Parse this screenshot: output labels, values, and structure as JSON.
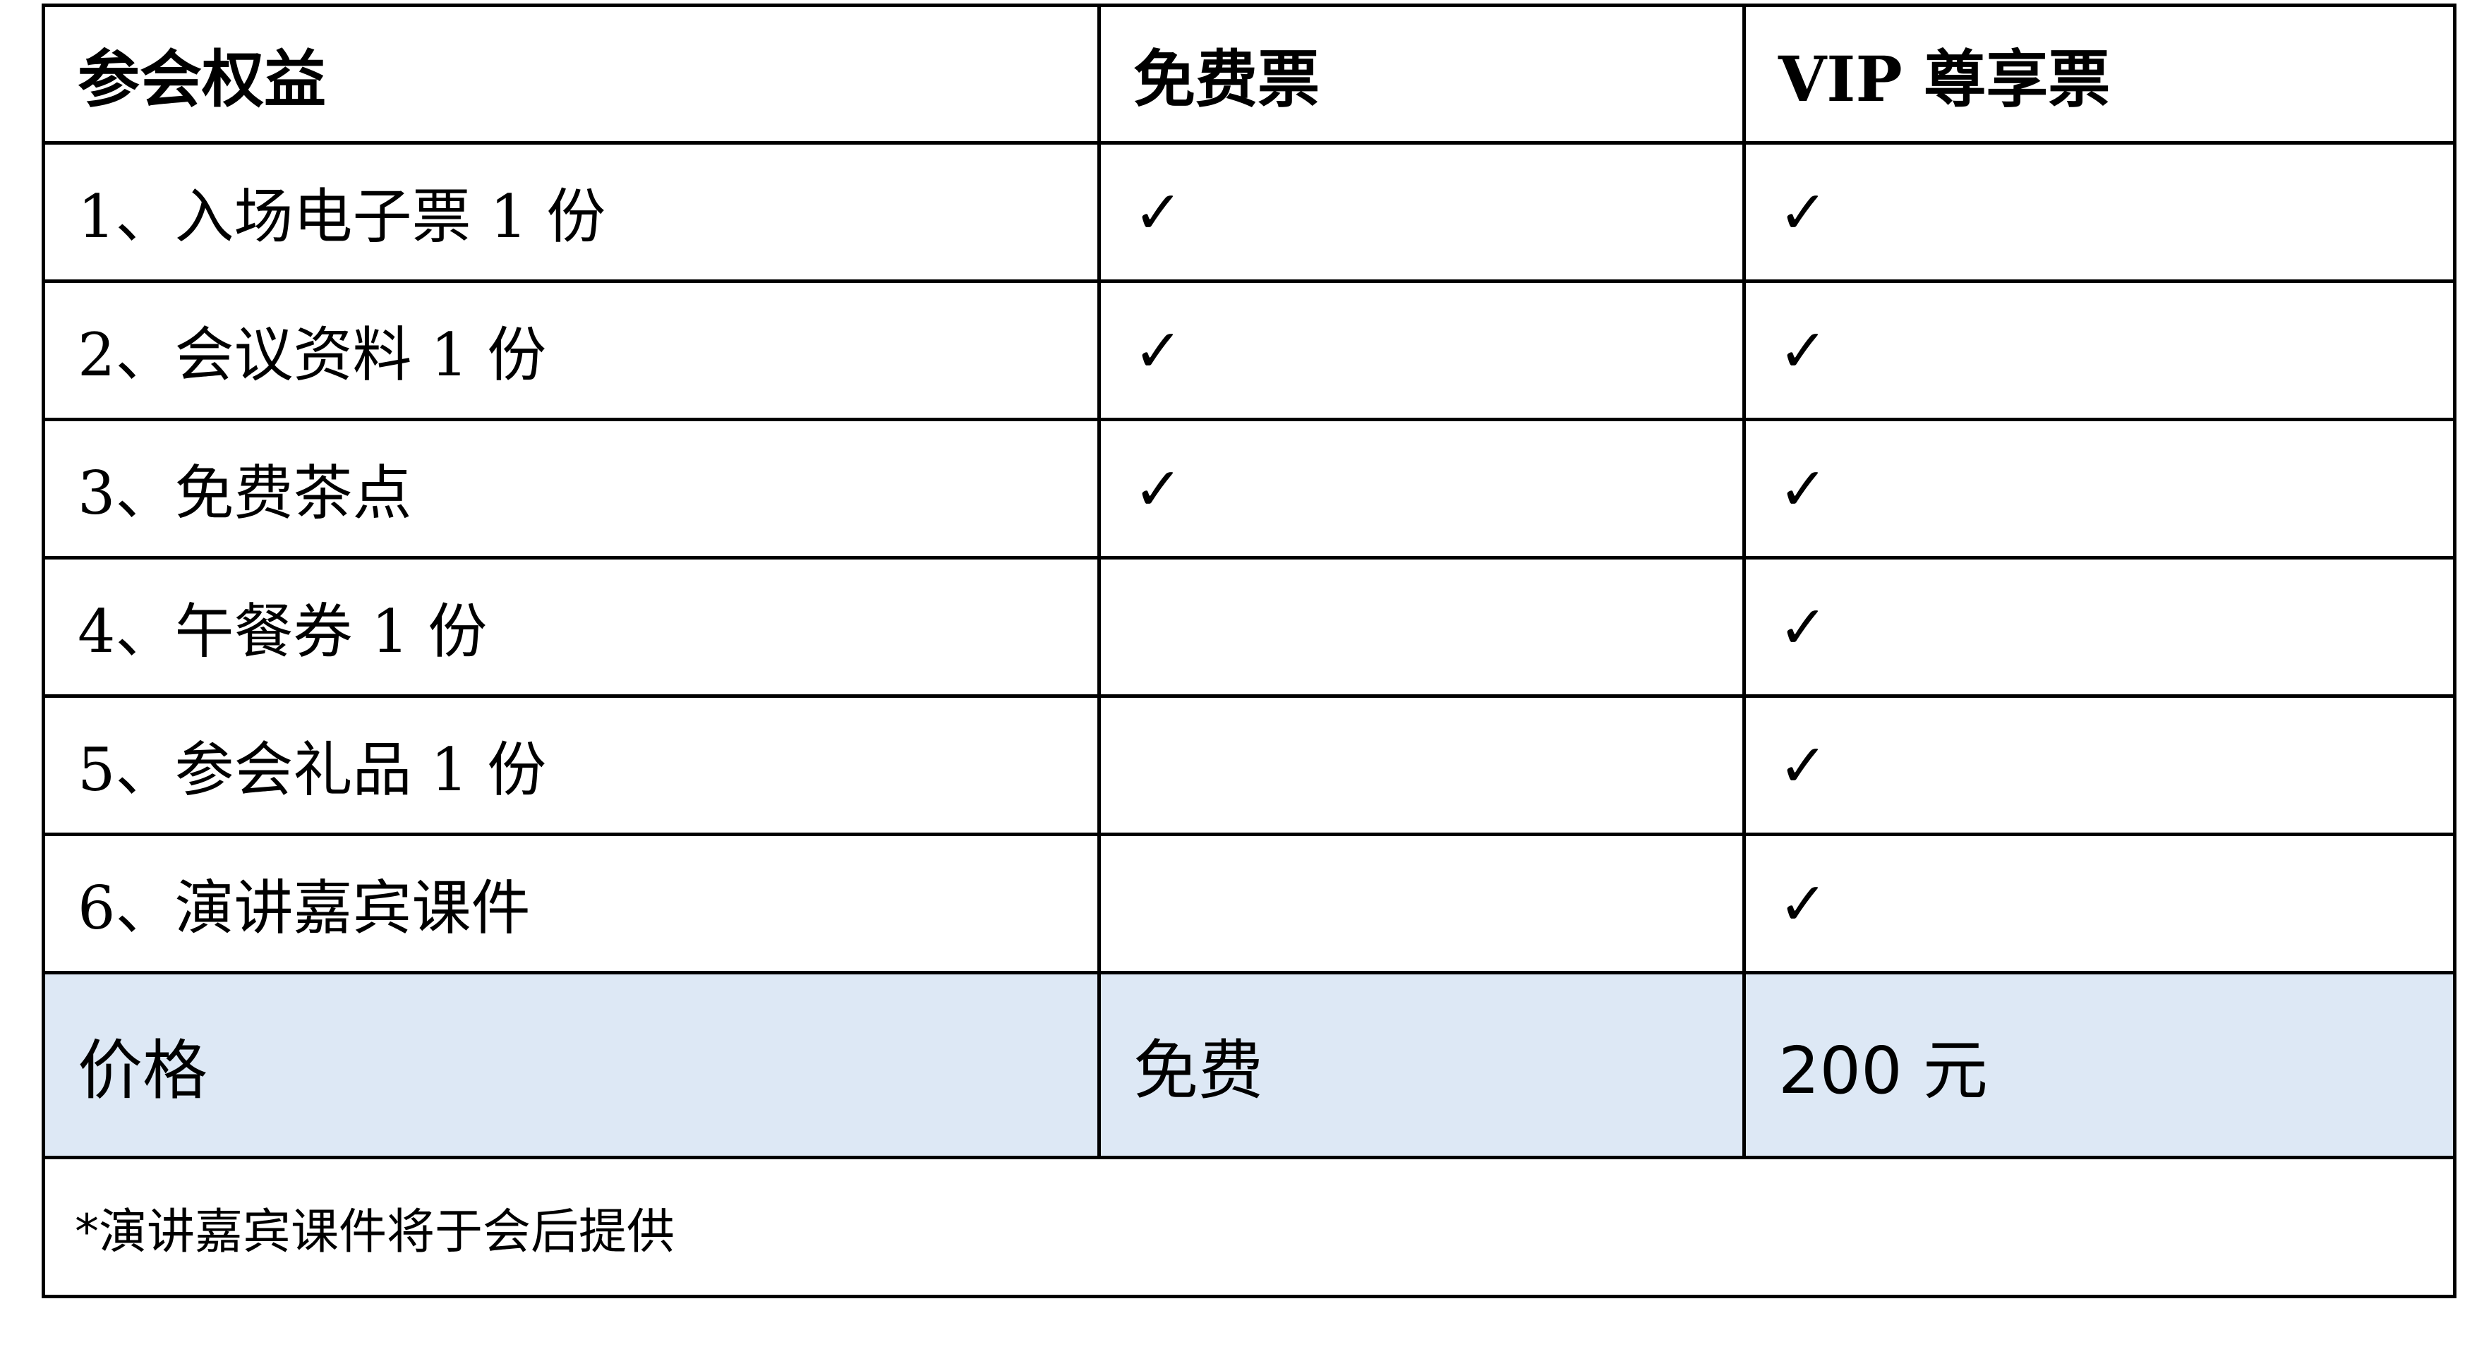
{
  "headers": [
    "参会权益",
    "免费票",
    "VIP 尊享票"
  ],
  "rows": [
    {
      "benefit": "1、入场电子票 1 份",
      "free": true,
      "vip": true
    },
    {
      "benefit": "2、会议资料 1 份",
      "free": true,
      "vip": true
    },
    {
      "benefit": "3、免费茶点",
      "free": true,
      "vip": true
    },
    {
      "benefit": "4、午餐券 1 份",
      "free": false,
      "vip": true
    },
    {
      "benefit": "5、参会礼品 1 份",
      "free": false,
      "vip": true
    },
    {
      "benefit": "6、演讲嘉宾课件",
      "free": false,
      "vip": true
    }
  ],
  "check_icon": "checkmark-icon",
  "check_glyph": "✓",
  "price": {
    "label": "价格",
    "free": "免费",
    "vip": "200 元"
  },
  "price_row_color": "#dde8f5",
  "footnote": "*演讲嘉宾课件将于会后提供"
}
